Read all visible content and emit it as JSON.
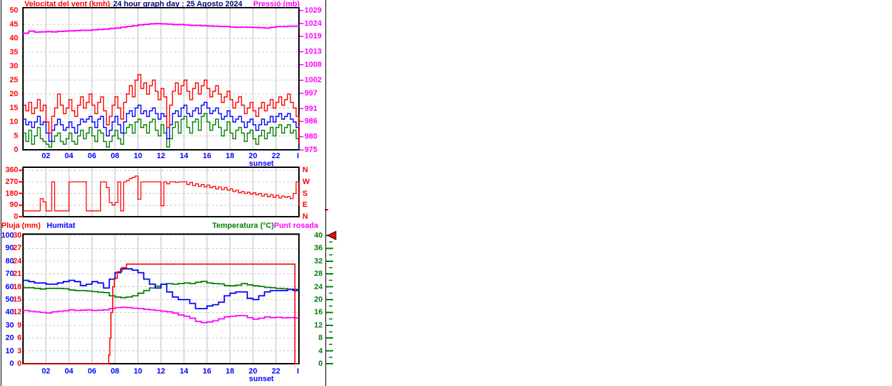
{
  "header": {
    "left_label": "Velocitat del vent (kmh)",
    "title": "24 hour graph day : 25 Agosto 2024",
    "right_label": "Pressió (mb)"
  },
  "legend": {
    "rain": "Pluja (mm)",
    "humidity": "Humitat",
    "temperature": "Temperatura (°C)",
    "dewpoint": "Punt rosada"
  },
  "x_axis": {
    "tick_hours": [
      2,
      4,
      6,
      8,
      10,
      12,
      14,
      16,
      18,
      20,
      22
    ],
    "tick_labels": [
      "02",
      "04",
      "06",
      "08",
      "10",
      "12",
      "14",
      "16",
      "18",
      "20",
      "22"
    ],
    "end_label": "I",
    "sunset_label": "sunset"
  },
  "colors": {
    "wind": "#ff0000",
    "pressure": "#ff00ff",
    "wind_average": "#0000ff",
    "wind_low": "#008000",
    "direction": "#ff0000",
    "rain": "#ff0000",
    "humidity": "#0000ff",
    "temperature": "#008000",
    "dewpoint": "#ff00ff",
    "time_axis": "#0000ff",
    "title": "#000080",
    "grid_vertical": "#dcdcdc",
    "grid_horizontal": "#c8c8c8",
    "frame": "#000000",
    "marker": "#ff0000"
  },
  "chart_data": [
    {
      "type": "line",
      "title": "Velocitat del vent (kmh) / Pressió (mb)",
      "x_range": [
        0,
        24
      ],
      "axes": {
        "wind": {
          "side": "left",
          "range": [
            0,
            50
          ],
          "ticks": [
            0,
            5,
            10,
            15,
            20,
            25,
            30,
            35,
            40,
            45,
            50
          ],
          "color": "#ff0000"
        },
        "pressure": {
          "side": "right",
          "range": [
            975,
            1029
          ],
          "ticks": [
            975,
            980,
            986,
            991,
            997,
            1002,
            1008,
            1013,
            1019,
            1024,
            1029
          ],
          "color": "#ff00ff"
        }
      },
      "series": [
        {
          "name": "wind-low",
          "axis": "wind",
          "color": "#008000",
          "t0": 0,
          "dt": 0.25,
          "values": [
            6,
            3,
            7,
            2,
            5,
            8,
            4,
            3,
            2,
            1,
            3,
            5,
            6,
            3,
            2,
            4,
            6,
            3,
            2,
            5,
            7,
            4,
            6,
            8,
            5,
            3,
            7,
            6,
            3,
            1,
            3,
            5,
            7,
            4,
            2,
            6,
            8,
            9,
            6,
            10,
            11,
            8,
            9,
            6,
            10,
            11,
            7,
            5,
            9,
            6,
            1,
            4,
            8,
            10,
            6,
            11,
            12,
            8,
            6,
            10,
            11,
            7,
            12,
            13,
            10,
            7,
            9,
            11,
            8,
            5,
            7,
            10,
            6,
            4,
            7,
            8,
            6,
            3,
            6,
            7,
            4,
            2,
            5,
            7,
            4,
            6,
            8,
            5,
            8,
            9,
            6,
            8,
            9,
            6,
            7,
            4,
            0
          ]
        },
        {
          "name": "wind-average",
          "axis": "wind",
          "color": "#0000ff",
          "t0": 0,
          "dt": 0.25,
          "values": [
            11,
            9,
            10,
            8,
            10,
            12,
            9,
            10,
            6,
            3,
            7,
            9,
            11,
            9,
            7,
            8,
            10,
            8,
            6,
            9,
            11,
            10,
            11,
            12,
            10,
            8,
            11,
            12,
            8,
            5,
            7,
            10,
            12,
            9,
            6,
            10,
            13,
            14,
            12,
            15,
            16,
            13,
            14,
            12,
            14,
            15,
            13,
            11,
            13,
            12,
            4,
            9,
            13,
            14,
            12,
            15,
            16,
            13,
            12,
            14,
            15,
            13,
            16,
            17,
            15,
            13,
            14,
            15,
            13,
            11,
            12,
            14,
            12,
            10,
            11,
            12,
            10,
            8,
            10,
            11,
            9,
            7,
            9,
            11,
            9,
            10,
            12,
            10,
            12,
            13,
            11,
            12,
            13,
            11,
            10,
            8,
            1
          ]
        },
        {
          "name": "wind-gust",
          "axis": "wind",
          "color": "#ff0000",
          "t0": 0,
          "dt": 0.25,
          "values": [
            16,
            14,
            17,
            13,
            15,
            18,
            14,
            16,
            10,
            6,
            12,
            15,
            20,
            16,
            13,
            15,
            18,
            14,
            12,
            16,
            19,
            15,
            17,
            20,
            16,
            13,
            17,
            19,
            14,
            9,
            12,
            16,
            19,
            15,
            11,
            17,
            20,
            23,
            19,
            25,
            27,
            22,
            24,
            20,
            23,
            25,
            21,
            18,
            22,
            19,
            8,
            16,
            21,
            24,
            20,
            23,
            25,
            21,
            18,
            22,
            24,
            20,
            23,
            25,
            22,
            19,
            21,
            23,
            20,
            17,
            19,
            21,
            18,
            15,
            17,
            19,
            16,
            13,
            15,
            17,
            14,
            12,
            15,
            17,
            14,
            16,
            18,
            15,
            17,
            19,
            16,
            18,
            20,
            17,
            15,
            12,
            2
          ]
        },
        {
          "name": "pressure",
          "axis": "pressure",
          "color": "#ff00ff",
          "t0": 0,
          "dt": 0.5,
          "values": [
            1020.2,
            1021.0,
            1020.6,
            1020.7,
            1020.8,
            1020.7,
            1020.9,
            1021.0,
            1021.1,
            1021.2,
            1021.3,
            1021.3,
            1021.5,
            1021.6,
            1021.8,
            1022.0,
            1022.2,
            1022.5,
            1022.8,
            1023.1,
            1023.4,
            1023.6,
            1023.8,
            1023.9,
            1023.8,
            1023.7,
            1023.5,
            1023.6,
            1023.4,
            1023.2,
            1023.2,
            1023.1,
            1023.0,
            1022.9,
            1022.8,
            1022.8,
            1022.6,
            1022.5,
            1022.6,
            1022.5,
            1022.4,
            1022.3,
            1022.2,
            1022.5,
            1022.8,
            1022.8,
            1022.9,
            1022.9,
            1022.8
          ]
        }
      ]
    },
    {
      "type": "line",
      "title": "Direcció del vent",
      "x_range": [
        0,
        24
      ],
      "axes": {
        "direction": {
          "side": "left",
          "range": [
            0,
            360
          ],
          "ticks": [
            0,
            90,
            180,
            270,
            360
          ],
          "color": "#ff0000"
        }
      },
      "compass": {
        "degrees": [
          360,
          270,
          180,
          90,
          0
        ],
        "labels": [
          "N",
          "W",
          "S",
          "E",
          "N"
        ]
      },
      "series": [
        {
          "name": "wind-direction",
          "axis": "direction",
          "color": "#ff0000",
          "t0": 0,
          "dt": 0.25,
          "values": [
            45,
            45,
            45,
            45,
            45,
            45,
            140,
            115,
            45,
            45,
            270,
            45,
            45,
            45,
            45,
            45,
            270,
            270,
            270,
            270,
            270,
            270,
            45,
            45,
            45,
            45,
            45,
            270,
            270,
            225,
            110,
            90,
            110,
            270,
            45,
            270,
            280,
            295,
            305,
            315,
            135,
            270,
            270,
            270,
            270,
            270,
            270,
            270,
            85,
            270,
            255,
            270,
            270,
            265,
            270,
            270,
            270,
            250,
            265,
            240,
            255,
            235,
            250,
            230,
            245,
            225,
            235,
            215,
            230,
            210,
            225,
            205,
            215,
            195,
            205,
            185,
            195,
            180,
            190,
            175,
            185,
            170,
            180,
            160,
            175,
            155,
            170,
            150,
            165,
            145,
            160,
            150,
            155,
            140,
            180,
            270,
            85
          ]
        }
      ]
    },
    {
      "type": "line",
      "title": "Pluja / Humitat / Temperatura / Punt rosada",
      "x_range": [
        0,
        24
      ],
      "axes": {
        "humidity": {
          "side": "left",
          "range": [
            0,
            100
          ],
          "ticks": [
            0,
            10,
            20,
            30,
            40,
            50,
            60,
            70,
            80,
            90,
            100
          ],
          "color": "#0000ff"
        },
        "rain": {
          "side": "left",
          "range": [
            0,
            30
          ],
          "ticks": [
            0,
            3,
            6,
            9,
            12,
            15,
            18,
            21,
            24,
            27,
            30
          ],
          "color": "#ff0000"
        },
        "temperature": {
          "side": "right",
          "range": [
            0,
            40
          ],
          "ticks": [
            0,
            4,
            8,
            12,
            16,
            20,
            24,
            28,
            32,
            36,
            40
          ],
          "color": "#008000"
        }
      },
      "right_marker": {
        "symbol": "left-triangle",
        "at_value": 40,
        "axis": "temperature",
        "color": "#ff0000"
      },
      "series": [
        {
          "name": "temperature",
          "axis": "temperature",
          "color": "#008000",
          "t0": 0,
          "dt": 0.5,
          "values": [
            23.7,
            23.7,
            23.5,
            23.3,
            23.5,
            23.5,
            23.5,
            23.4,
            23.0,
            22.8,
            22.8,
            22.7,
            22.5,
            22.3,
            22.2,
            21.2,
            20.8,
            20.6,
            20.8,
            21.2,
            22.0,
            22.8,
            23.6,
            24.2,
            24.8,
            25.0,
            24.8,
            25.0,
            25.2,
            25.0,
            25.4,
            25.7,
            25.2,
            25.0,
            24.9,
            24.4,
            24.3,
            24.5,
            25.0,
            24.6,
            24.3,
            24.1,
            23.8,
            23.7,
            23.5,
            23.4,
            23.2,
            23.2,
            23.2
          ]
        },
        {
          "name": "dewpoint",
          "axis": "temperature",
          "color": "#ff00ff",
          "t0": 0,
          "dt": 0.5,
          "values": [
            16.6,
            16.4,
            16.2,
            16.0,
            15.8,
            16.2,
            16.4,
            16.5,
            16.8,
            16.6,
            16.7,
            16.8,
            16.6,
            16.7,
            16.8,
            17.2,
            17.5,
            17.6,
            17.5,
            17.3,
            17.2,
            17.0,
            16.8,
            16.6,
            16.4,
            16.2,
            15.8,
            15.2,
            14.8,
            14.2,
            13.2,
            12.8,
            13.0,
            13.4,
            14.0,
            14.6,
            14.8,
            15.0,
            15.0,
            14.4,
            13.9,
            14.2,
            14.6,
            14.4,
            14.5,
            14.3,
            14.4,
            14.3,
            14.3
          ]
        },
        {
          "name": "humidity",
          "axis": "humidity",
          "color": "#0000ff",
          "t0": 0,
          "dt": 0.5,
          "values": [
            65,
            64,
            63,
            63,
            62,
            62,
            63,
            64,
            65,
            64,
            61,
            62,
            64,
            63,
            59,
            66,
            71,
            74,
            74,
            73,
            71,
            66,
            62,
            59,
            62,
            56,
            52,
            50,
            50,
            47,
            43,
            43,
            45,
            46,
            48,
            53,
            55,
            56,
            56,
            51,
            50,
            53,
            56,
            57,
            57,
            57,
            58,
            57,
            58
          ]
        },
        {
          "name": "rain",
          "axis": "rain",
          "color": "#ff0000",
          "points": [
            [
              0,
              0
            ],
            [
              7.3,
              0
            ],
            [
              7.45,
              2
            ],
            [
              7.55,
              6
            ],
            [
              7.65,
              12
            ],
            [
              7.8,
              18
            ],
            [
              7.95,
              20
            ],
            [
              8.2,
              21.5
            ],
            [
              8.6,
              22.5
            ],
            [
              9.0,
              23.3
            ],
            [
              23.65,
              23.3
            ],
            [
              23.65,
              0
            ],
            [
              24,
              0
            ]
          ]
        }
      ]
    }
  ]
}
